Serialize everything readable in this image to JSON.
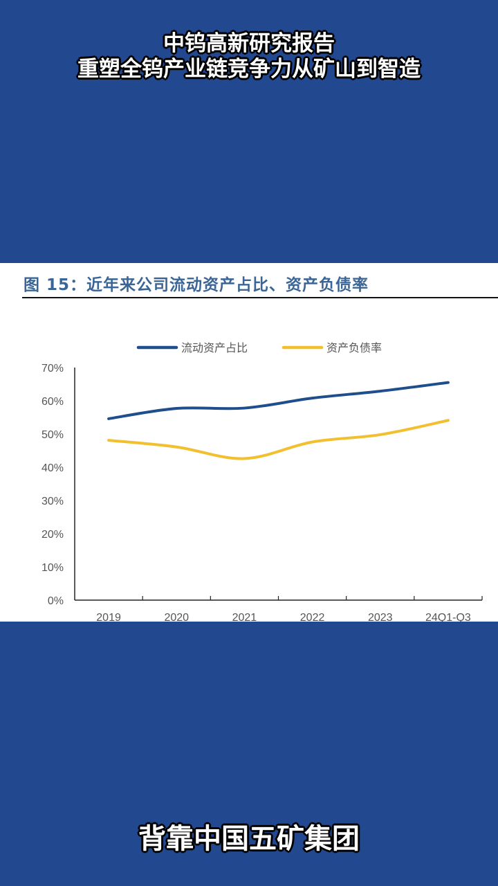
{
  "captions": {
    "line1": "中钨高新研究报告",
    "line2": "重塑全钨产业链竞争力从矿山到智造",
    "bottom": "背靠中国五矿集团"
  },
  "colors": {
    "background": "#22498f",
    "title": "#3a6596"
  },
  "chart_data": {
    "type": "line",
    "title": "图 15：近年来公司流动资产占比、资产负债率",
    "categories": [
      "2019",
      "2020",
      "2021",
      "2022",
      "2023",
      "24Q1-Q3"
    ],
    "y_ticks": [
      "0%",
      "10%",
      "20%",
      "30%",
      "40%",
      "50%",
      "60%",
      "70%"
    ],
    "ylim": [
      0,
      70
    ],
    "y_unit": "%",
    "grid": false,
    "legend_position": "top",
    "smooth": true,
    "series": [
      {
        "name": "流动资产占比",
        "color": "#1f4e8c",
        "values": [
          54.6,
          57.7,
          57.8,
          60.8,
          62.9,
          65.5
        ]
      },
      {
        "name": "资产负债率",
        "color": "#f2bf2f",
        "values": [
          48.1,
          46.1,
          42.6,
          47.6,
          49.8,
          54.1
        ]
      }
    ]
  }
}
